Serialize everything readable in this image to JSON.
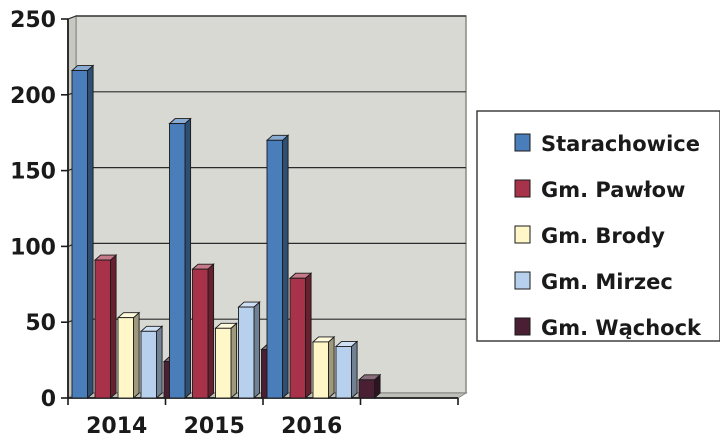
{
  "chart_data": {
    "type": "bar",
    "title": "",
    "xlabel": "",
    "ylabel": "",
    "categories": [
      "2014",
      "2015",
      "2016",
      ""
    ],
    "ylim": [
      0,
      250
    ],
    "yticks": [
      0,
      50,
      100,
      150,
      200,
      250
    ],
    "grid": true,
    "legend_position": "right",
    "style": "3d",
    "series": [
      {
        "name": "Starachowice",
        "color": "#4a7ebb",
        "values": [
          216,
          181,
          170,
          null
        ]
      },
      {
        "name": "Gm. Pawłow",
        "color": "#a8324a",
        "values": [
          91,
          85,
          79,
          null
        ]
      },
      {
        "name": "Gm. Brody",
        "color": "#fff7c8",
        "values": [
          53,
          46,
          37,
          null
        ]
      },
      {
        "name": "Gm. Mirzec",
        "color": "#b7d0ee",
        "values": [
          44,
          60,
          34,
          null
        ]
      },
      {
        "name": "Gm. Wąchock",
        "color": "#4a1f33",
        "values": [
          24,
          32,
          12,
          null
        ]
      }
    ]
  }
}
